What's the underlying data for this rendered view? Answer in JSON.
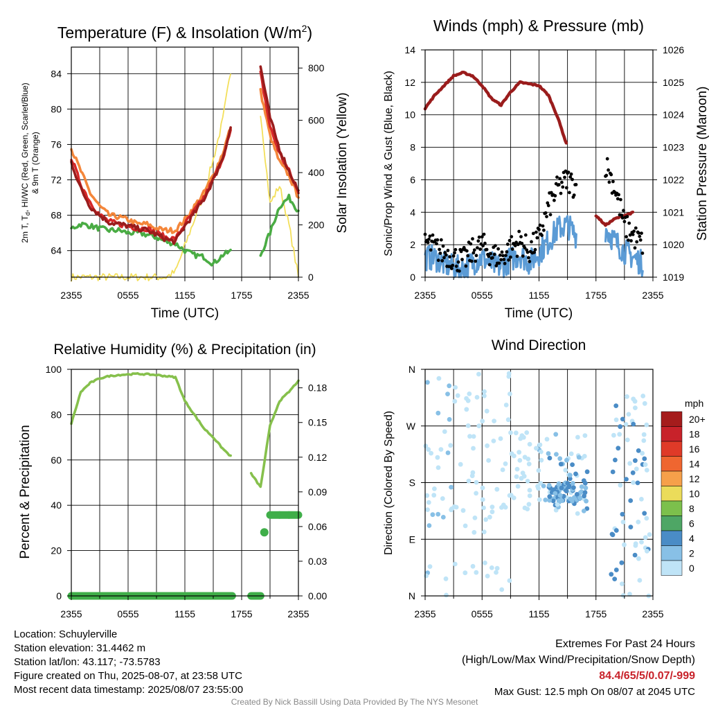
{
  "xticks": [
    "2355",
    "0555",
    "1155",
    "1755",
    "2355"
  ],
  "temp": {
    "title_main": "Temperature (F) & Insolation (W/m",
    "title_sup": "2",
    "title_end": ")",
    "ylabel_left": [
      "2m T, T",
      "d",
      ", HI/WC (Red, Green, Scarlet/Blue)",
      "& 9m T (Orange)"
    ],
    "ylabel_right": "Solar Insolation (Yellow)",
    "xlabel": "Time (UTC)",
    "left_ticks": [
      "64",
      "68",
      "72",
      "76",
      "80",
      "84"
    ],
    "right_ticks": [
      "0",
      "200",
      "400",
      "600",
      "800"
    ]
  },
  "wind": {
    "title": "Winds (mph) & Pressure (mb)",
    "ylabel_left": "Sonic/Prop Wind & Gust (Blue, Black)",
    "ylabel_right": "Station Pressure (Maroon)",
    "xlabel": "Time (UTC)",
    "left_ticks": [
      "0",
      "2",
      "4",
      "6",
      "8",
      "10",
      "12",
      "14"
    ],
    "right_ticks": [
      "1019",
      "1020",
      "1021",
      "1022",
      "1023",
      "1024",
      "1025",
      "1026"
    ]
  },
  "rh": {
    "title": "Relative Humidity (%) & Precipitation (in)",
    "ylabel": "Percent & Precipitation",
    "left_ticks": [
      "0",
      "20",
      "40",
      "60",
      "80",
      "100"
    ],
    "right_ticks": [
      "0.00",
      "0.03",
      "0.06",
      "0.09",
      "0.12",
      "0.15",
      "0.18"
    ]
  },
  "dir": {
    "title": "Wind Direction",
    "ylabel": "Direction (Colored By Speed)",
    "dir_ticks": [
      "N",
      "E",
      "S",
      "W",
      "N"
    ],
    "legend_title": "mph",
    "legend_labels": [
      "20+",
      "18",
      "16",
      "14",
      "12",
      "10",
      "8",
      "6",
      "4",
      "2",
      "0"
    ],
    "legend_colors": [
      "#a51c1c",
      "#c8222a",
      "#df3a28",
      "#ef6630",
      "#f6a04a",
      "#ebdc5a",
      "#7cc04c",
      "#4ea665",
      "#4a8cc6",
      "#88c0e6",
      "#bfe4f7"
    ]
  },
  "info": {
    "location": "Location: Schuylerville",
    "elevation": "Station elevation: 31.4462 m",
    "latlon": "Station lat/lon: 43.117; -73.5783",
    "created": "Figure created on Thu, 2025-08-07, at 23:58 UTC",
    "recent": "Most recent data timestamp: 2025/08/07 23:55:00",
    "extremes_title": "Extremes For Past 24 Hours",
    "extremes_sub": "(High/Low/Max Wind/Precipitation/Snow Depth)",
    "extremes_values": "84.4/65/5/0.07/-999",
    "max_gust": "Max Gust: 12.5 mph On 08/07 at 2045 UTC",
    "credit": "Created By Nick Bassill Using Data Provided By The NYS Mesonet"
  },
  "chart_data": [
    {
      "type": "line",
      "title": "Temperature (F) & Insolation (W/m2)",
      "xlabel": "Time (UTC)",
      "x_hours": [
        0,
        1,
        2,
        3,
        4,
        5,
        6,
        7,
        8,
        9,
        10,
        11,
        12,
        13,
        14,
        15,
        16,
        17,
        18,
        19,
        20,
        21,
        22,
        23,
        24
      ],
      "ylim_left": [
        61,
        87
      ],
      "ylim_right": [
        0,
        880
      ],
      "series": [
        {
          "color": "#d62728",
          "values": [
            74.5,
            71.5,
            69.5,
            68,
            67.3,
            67,
            66.8,
            66.5,
            66.5,
            66,
            65.5,
            65.3,
            67,
            68.5,
            70,
            72,
            74.5,
            78,
            null,
            null,
            84,
            78,
            75,
            73,
            70.5
          ]
        },
        {
          "color": "#f4863a",
          "values": [
            75.5,
            73,
            70.5,
            69,
            68,
            67.8,
            67.5,
            67,
            67,
            66.5,
            66.3,
            66.3,
            67.5,
            69,
            70.5,
            72.5,
            75,
            78.5,
            null,
            null,
            82,
            77,
            74,
            72.5,
            70
          ]
        },
        {
          "color": "#9a1c1c",
          "values": [
            74,
            71,
            69,
            68,
            67.2,
            67,
            66.8,
            66.5,
            66.3,
            65.8,
            65.3,
            65,
            66.8,
            68.2,
            69.8,
            72,
            74.5,
            78.5,
            null,
            null,
            84.8,
            79,
            75.5,
            73,
            70.8
          ]
        },
        {
          "color": "#4aac44",
          "values": [
            66.5,
            67,
            66.8,
            66.5,
            66.3,
            66.3,
            66,
            66,
            65.8,
            65.5,
            65,
            64.8,
            64,
            63.5,
            63.3,
            62.5,
            63.5,
            64,
            null,
            null,
            63.5,
            66,
            69,
            70,
            68.5
          ]
        },
        {
          "color": "#f3df5a",
          "name_hidden": "insolation",
          "values": [
            0,
            0,
            0,
            0,
            0,
            0,
            0,
            0,
            0,
            0,
            0,
            20,
            120,
            220,
            320,
            450,
            600,
            820,
            null,
            null,
            630,
            280,
            350,
            200,
            0
          ]
        }
      ]
    },
    {
      "type": "scatter",
      "title": "Winds (mph) & Pressure (mb)",
      "xlabel": "Time (UTC)",
      "x_hours": [
        0,
        1,
        2,
        3,
        4,
        5,
        6,
        7,
        8,
        9,
        10,
        11,
        12,
        13,
        14,
        15,
        16,
        17,
        18,
        19,
        20,
        21,
        22,
        23,
        24
      ],
      "ylim_left": [
        0,
        14
      ],
      "ylim_right": [
        1019,
        1026
      ],
      "series": [
        {
          "color": "#9a1c1c",
          "type": "line",
          "values": [
            1024.2,
            1024.6,
            1024.9,
            1025.2,
            1025.3,
            1025.2,
            1024.9,
            1024.5,
            1024.3,
            1024.7,
            1025,
            1024.95,
            1024.9,
            1024.6,
            1023.9,
            1023,
            null,
            null,
            1020.9,
            1020.6,
            1020.8,
            1020.9,
            1021,
            null,
            null
          ]
        },
        {
          "color": "#5b9bd5",
          "type": "line",
          "values": [
            1.2,
            1.2,
            0.8,
            0.6,
            0.5,
            0.9,
            1.2,
            0.8,
            0.6,
            1.1,
            1.4,
            0.9,
            1.5,
            2.2,
            3,
            3.2,
            2.5,
            null,
            null,
            3,
            2.2,
            1.6,
            1.2,
            0.8,
            null
          ]
        },
        {
          "color": "#000000",
          "type": "scatter",
          "values": [
            2.2,
            1.8,
            1.5,
            1.2,
            1,
            1.6,
            2,
            1.4,
            1.2,
            1.8,
            2.2,
            1.6,
            2.4,
            4.3,
            5.5,
            6,
            5.5,
            null,
            null,
            7,
            5.5,
            3.2,
            2.5,
            2,
            null
          ]
        }
      ]
    },
    {
      "type": "line",
      "title": "Relative Humidity (%) & Precipitation (in)",
      "x_hours": [
        0,
        1,
        2,
        3,
        4,
        5,
        6,
        7,
        8,
        9,
        10,
        11,
        12,
        13,
        14,
        15,
        16,
        17,
        18,
        19,
        20,
        21,
        22,
        23,
        24
      ],
      "ylim_left": [
        0,
        100
      ],
      "ylim_right": [
        0,
        0.196
      ],
      "series": [
        {
          "color": "#86c04c",
          "values": [
            76,
            90,
            94,
            96,
            97,
            97.5,
            97.8,
            98,
            97.8,
            97.5,
            97,
            96.5,
            86,
            80,
            74,
            70,
            65,
            61,
            null,
            54,
            48,
            75,
            86,
            90,
            95
          ]
        },
        {
          "color": "#3fae49",
          "values": [
            0,
            0,
            0,
            0,
            0,
            0,
            0,
            0,
            0,
            0,
            0,
            0,
            0,
            0,
            0,
            0,
            0,
            0,
            null,
            0,
            0,
            0.07,
            0.07,
            0.07,
            0.07
          ]
        }
      ]
    },
    {
      "type": "scatter",
      "title": "Wind Direction",
      "ylabel": "Direction (Colored By Speed)",
      "x_hours_range": [
        0,
        24
      ],
      "ylim": [
        0,
        360
      ],
      "y_ticks_deg": [
        0,
        90,
        180,
        270,
        360
      ]
    }
  ]
}
